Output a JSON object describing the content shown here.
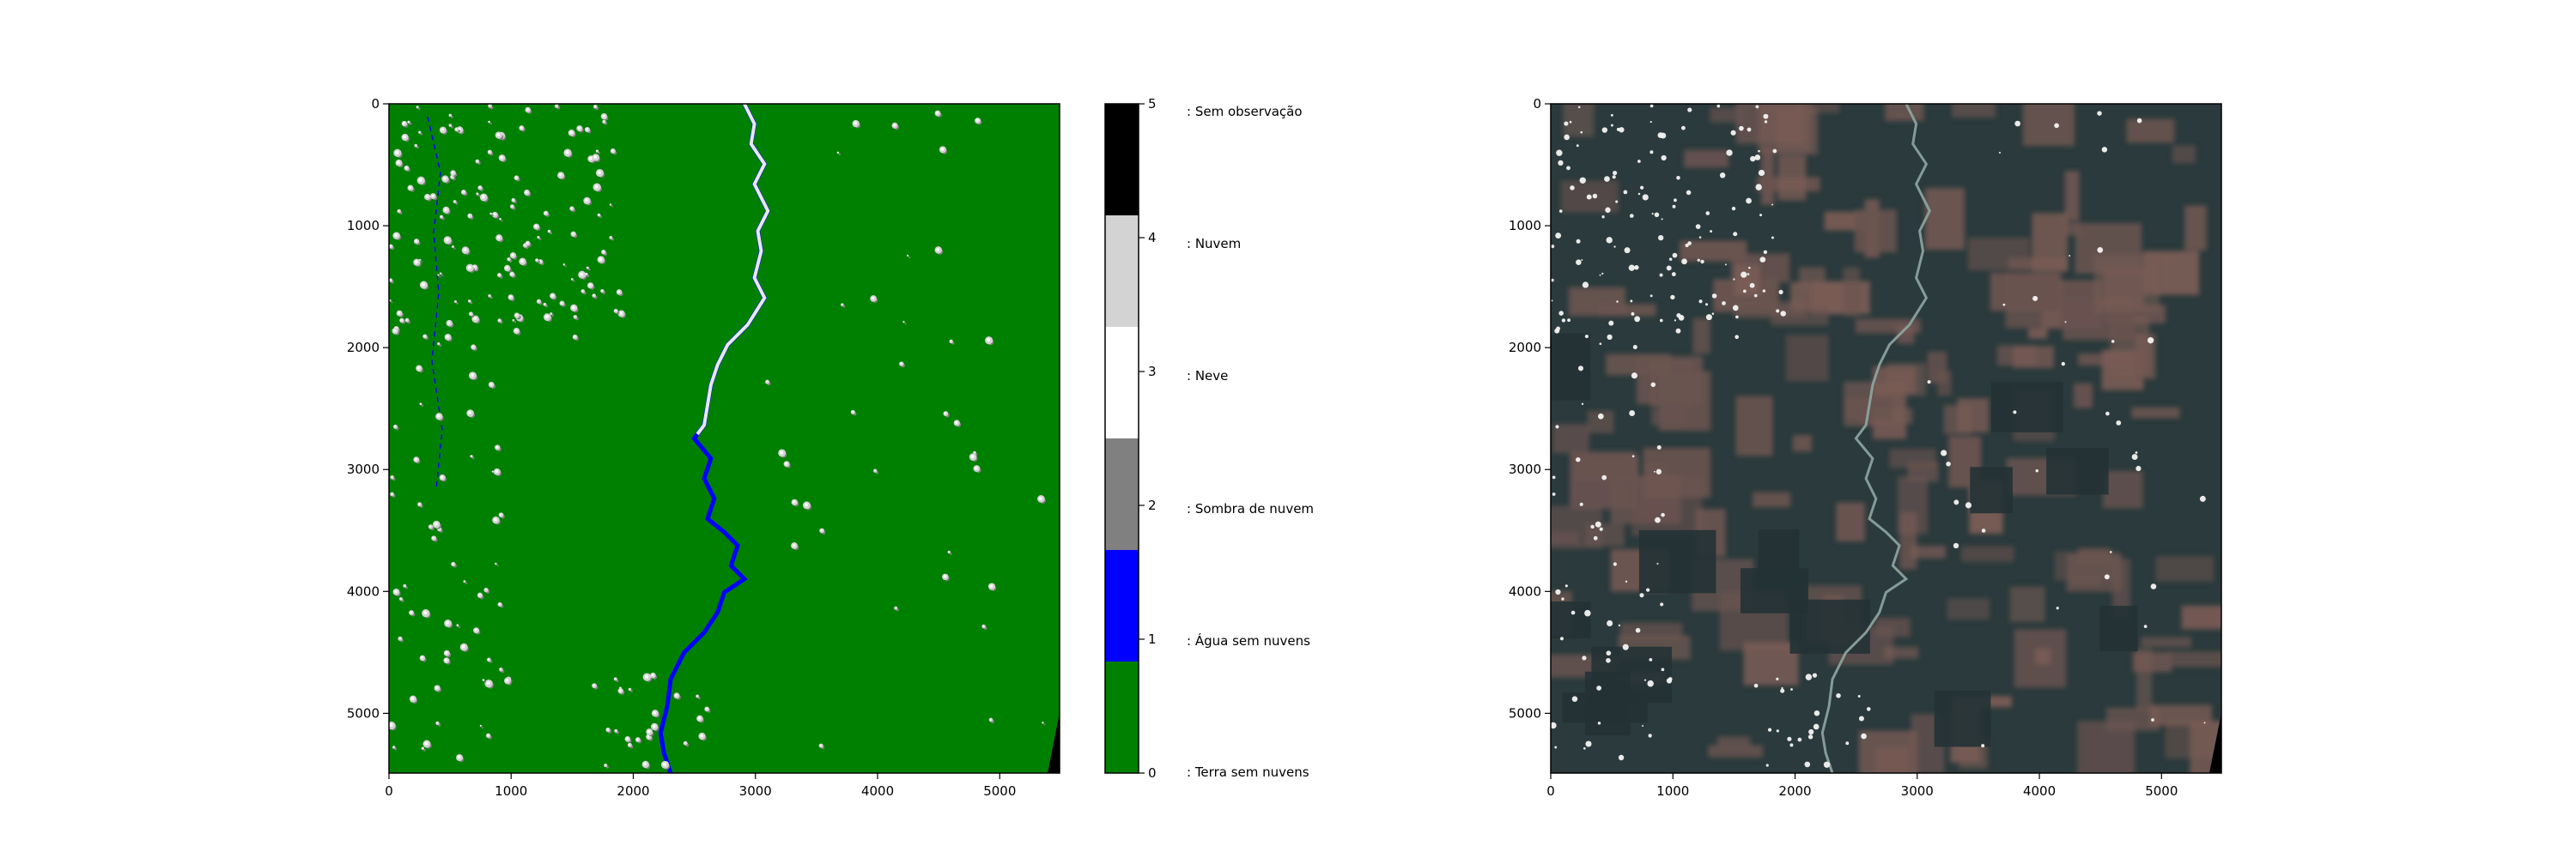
{
  "chart_data": [
    {
      "type": "heatmap",
      "title": "",
      "xlabel": "",
      "ylabel": "",
      "xlim": [
        0,
        5490
      ],
      "ylim": [
        5490,
        0
      ],
      "x_ticks": [
        0,
        1000,
        2000,
        3000,
        4000,
        5000
      ],
      "y_ticks": [
        0,
        1000,
        2000,
        3000,
        4000,
        5000
      ],
      "x_tick_labels": [
        "0",
        "1000",
        "2000",
        "3000",
        "4000",
        "5000"
      ],
      "y_tick_labels": [
        "0",
        "1000",
        "2000",
        "3000",
        "4000",
        "5000"
      ],
      "grid": false,
      "dominant_class": 0,
      "colorbar": {
        "ticks": [
          0,
          1,
          2,
          3,
          4,
          5
        ],
        "tick_labels": [
          "0",
          "1",
          "2",
          "3",
          "4",
          "5"
        ],
        "classes": [
          {
            "value": 0,
            "label": ": Terra sem nuvens",
            "color": "#008000"
          },
          {
            "value": 1,
            "label": ": Água sem nuvens",
            "color": "#0000ff"
          },
          {
            "value": 2,
            "label": ": Sombra de nuvem",
            "color": "#808080"
          },
          {
            "value": 3,
            "label": ": Neve",
            "color": "#ffffff"
          },
          {
            "value": 4,
            "label": ": Nuvem",
            "color": "#d3d3d3"
          },
          {
            "value": 5,
            "label": ": Sem observação",
            "color": "#000000"
          }
        ]
      }
    },
    {
      "type": "heatmap",
      "title": "",
      "xlabel": "",
      "ylabel": "",
      "xlim": [
        0,
        5490
      ],
      "ylim": [
        5490,
        0
      ],
      "x_ticks": [
        0,
        1000,
        2000,
        3000,
        4000,
        5000
      ],
      "y_ticks": [
        0,
        1000,
        2000,
        3000,
        4000,
        5000
      ],
      "x_tick_labels": [
        "0",
        "1000",
        "2000",
        "3000",
        "4000",
        "5000"
      ],
      "y_tick_labels": [
        "0",
        "1000",
        "2000",
        "3000",
        "4000",
        "5000"
      ],
      "grid": false,
      "image_palette": {
        "forest": "#2b3a3c",
        "cleared": "#6a5450",
        "river": "#8fa7a2",
        "cloud": "#f4f4f2",
        "nodata": "#000000"
      }
    }
  ]
}
